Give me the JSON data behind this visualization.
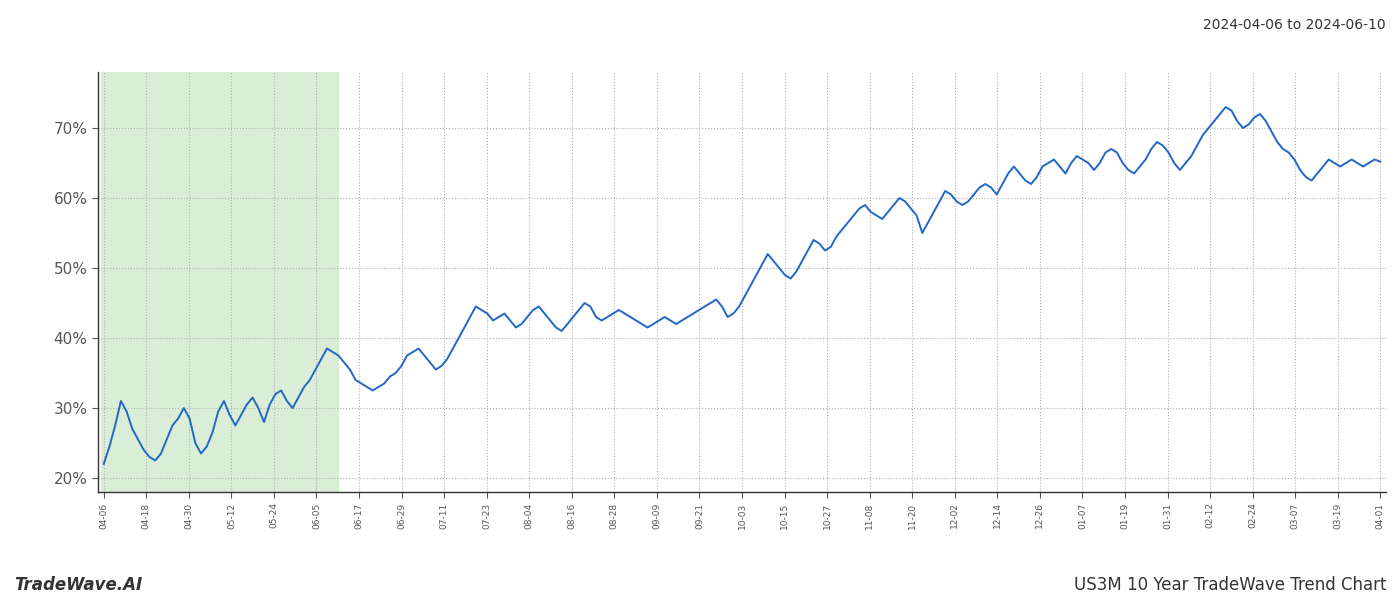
{
  "title_top_right": "2024-04-06 to 2024-06-10",
  "bottom_left": "TradeWave.AI",
  "bottom_right": "US3M 10 Year TradeWave Trend Chart",
  "line_color": "#2367c4",
  "line_width": 1.4,
  "bg_color": "#ffffff",
  "grid_color": "#b0b0b0",
  "grid_style": ":",
  "ylim": [
    18,
    78
  ],
  "yticks": [
    20,
    30,
    40,
    50,
    60,
    70
  ],
  "green_shade_color": "#d4ecd0",
  "green_shade_alpha": 0.85,
  "x_tick_fontsize": 6.5,
  "y_tick_fontsize": 11,
  "x_labels": [
    "04-06",
    "04-18",
    "04-30",
    "05-12",
    "05-24",
    "06-05",
    "06-17",
    "06-29",
    "07-11",
    "07-23",
    "08-04",
    "08-16",
    "08-28",
    "09-09",
    "09-21",
    "10-03",
    "10-15",
    "10-27",
    "11-08",
    "11-20",
    "12-02",
    "12-14",
    "12-26",
    "01-07",
    "01-19",
    "01-31",
    "02-12",
    "02-24",
    "03-07",
    "03-19",
    "04-01"
  ],
  "green_end_label": "06-11",
  "y_values": [
    22.0,
    24.5,
    27.5,
    31.0,
    29.5,
    27.0,
    25.5,
    24.0,
    23.0,
    22.5,
    23.5,
    25.5,
    27.5,
    28.5,
    30.0,
    28.5,
    25.0,
    23.5,
    24.5,
    26.5,
    29.5,
    31.0,
    29.0,
    27.5,
    29.0,
    30.5,
    31.5,
    30.0,
    28.0,
    30.5,
    32.0,
    32.5,
    31.0,
    30.0,
    31.5,
    33.0,
    34.0,
    35.5,
    37.0,
    38.5,
    38.0,
    37.5,
    36.5,
    35.5,
    34.0,
    33.5,
    33.0,
    32.5,
    33.0,
    33.5,
    34.5,
    35.0,
    36.0,
    37.5,
    38.0,
    38.5,
    37.5,
    36.5,
    35.5,
    36.0,
    37.0,
    38.5,
    40.0,
    41.5,
    43.0,
    44.5,
    44.0,
    43.5,
    42.5,
    43.0,
    43.5,
    42.5,
    41.5,
    42.0,
    43.0,
    44.0,
    44.5,
    43.5,
    42.5,
    41.5,
    41.0,
    42.0,
    43.0,
    44.0,
    45.0,
    44.5,
    43.0,
    42.5,
    43.0,
    43.5,
    44.0,
    43.5,
    43.0,
    42.5,
    42.0,
    41.5,
    42.0,
    42.5,
    43.0,
    42.5,
    42.0,
    42.5,
    43.0,
    43.5,
    44.0,
    44.5,
    45.0,
    45.5,
    44.5,
    43.0,
    43.5,
    44.5,
    46.0,
    47.5,
    49.0,
    50.5,
    52.0,
    51.0,
    50.0,
    49.0,
    48.5,
    49.5,
    51.0,
    52.5,
    54.0,
    53.5,
    52.5,
    53.0,
    54.5,
    55.5,
    56.5,
    57.5,
    58.5,
    59.0,
    58.0,
    57.5,
    57.0,
    58.0,
    59.0,
    60.0,
    59.5,
    58.5,
    57.5,
    55.0,
    56.5,
    58.0,
    59.5,
    61.0,
    60.5,
    59.5,
    59.0,
    59.5,
    60.5,
    61.5,
    62.0,
    61.5,
    60.5,
    62.0,
    63.5,
    64.5,
    63.5,
    62.5,
    62.0,
    63.0,
    64.5,
    65.0,
    65.5,
    64.5,
    63.5,
    65.0,
    66.0,
    65.5,
    65.0,
    64.0,
    65.0,
    66.5,
    67.0,
    66.5,
    65.0,
    64.0,
    63.5,
    64.5,
    65.5,
    67.0,
    68.0,
    67.5,
    66.5,
    65.0,
    64.0,
    65.0,
    66.0,
    67.5,
    69.0,
    70.0,
    71.0,
    72.0,
    73.0,
    72.5,
    71.0,
    70.0,
    70.5,
    71.5,
    72.0,
    71.0,
    69.5,
    68.0,
    67.0,
    66.5,
    65.5,
    64.0,
    63.0,
    62.5,
    63.5,
    64.5,
    65.5,
    65.0,
    64.5,
    65.0,
    65.5,
    65.0,
    64.5,
    65.0,
    65.5,
    65.2
  ]
}
